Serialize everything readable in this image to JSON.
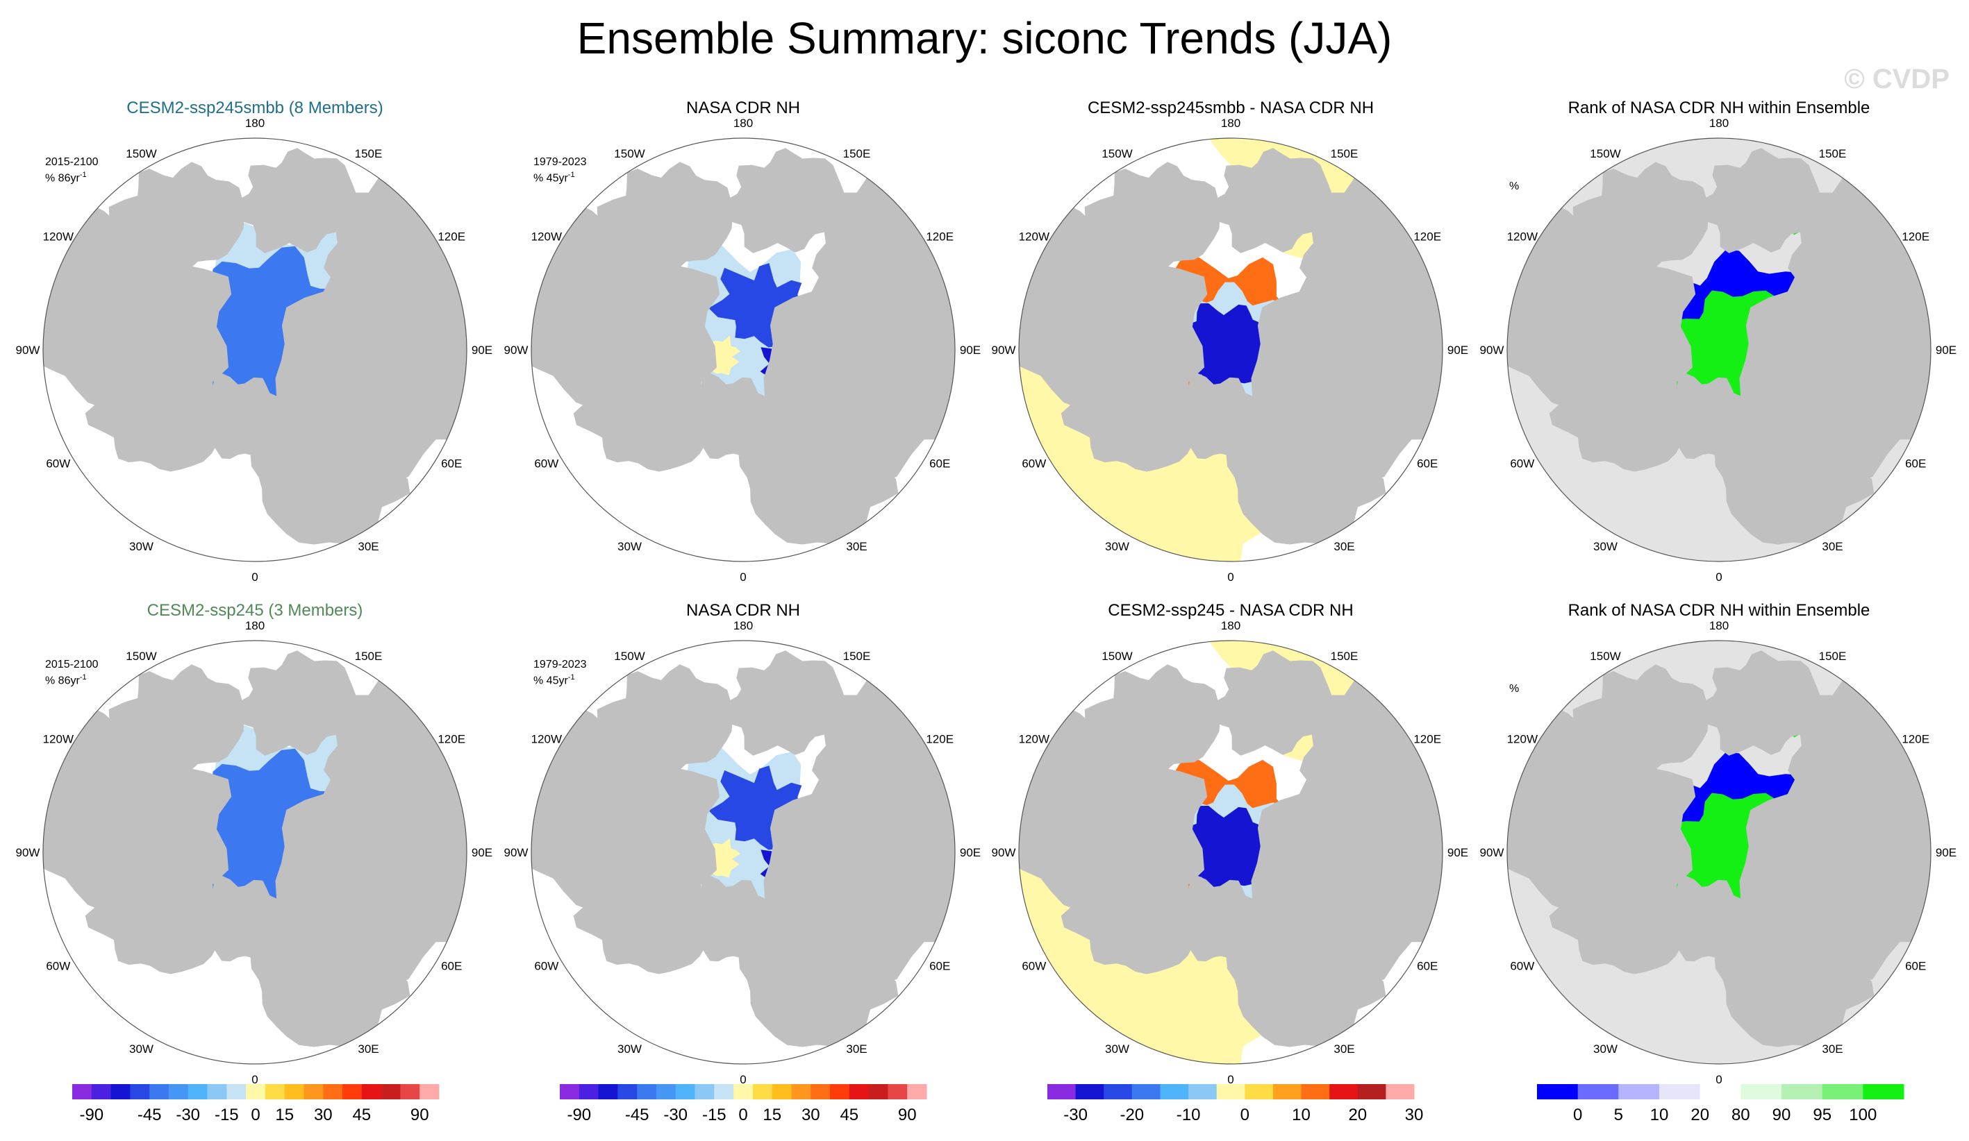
{
  "title": "Ensemble Summary: siconc Trends (JJA)",
  "watermark": "© CVDP",
  "colors": {
    "land": "#c0c0c0",
    "ocean": "#ffffff",
    "rank_background": "#e3e3e3"
  },
  "longitude_labels": [
    "180",
    "150E",
    "120E",
    "90E",
    "60E",
    "30E",
    "0",
    "30W",
    "60W",
    "90W",
    "120W",
    "150W"
  ],
  "panels": [
    {
      "row": 0,
      "col": 0,
      "title": "CESM2-ssp245smbb (8 Members)",
      "title_color": "#1f6f8b",
      "period": "2015-2100",
      "units": "% 86yr",
      "kind": "trend_model"
    },
    {
      "row": 0,
      "col": 1,
      "title": "NASA CDR NH",
      "title_color": "#000000",
      "period": "1979-2023",
      "units": "% 45yr",
      "kind": "trend_obs"
    },
    {
      "row": 0,
      "col": 2,
      "title": "CESM2-ssp245smbb - NASA CDR NH",
      "title_color": "#000000",
      "kind": "difference"
    },
    {
      "row": 0,
      "col": 3,
      "title": "Rank of NASA CDR NH within Ensemble",
      "title_color": "#000000",
      "units_only": "%",
      "kind": "rank"
    },
    {
      "row": 1,
      "col": 0,
      "title": "CESM2-ssp245 (3 Members)",
      "title_color": "#4f8a57",
      "period": "2015-2100",
      "units": "% 86yr",
      "kind": "trend_model"
    },
    {
      "row": 1,
      "col": 1,
      "title": "NASA CDR NH",
      "title_color": "#000000",
      "period": "1979-2023",
      "units": "% 45yr",
      "kind": "trend_obs"
    },
    {
      "row": 1,
      "col": 2,
      "title": "CESM2-ssp245 - NASA CDR NH",
      "title_color": "#000000",
      "kind": "difference"
    },
    {
      "row": 1,
      "col": 3,
      "title": "Rank of NASA CDR NH within Ensemble",
      "title_color": "#000000",
      "units_only": "%",
      "kind": "rank"
    }
  ],
  "colorbars": [
    {
      "name": "trend-colorbar-1",
      "colors": [
        "#8a2be2",
        "#4b20e0",
        "#1414d2",
        "#2848e6",
        "#3c78f0",
        "#4696f5",
        "#50b4fa",
        "#8cc8f5",
        "#c6e2f5",
        "#fff8a8",
        "#ffdc46",
        "#ffbe1e",
        "#ff961e",
        "#ff6e14",
        "#ff3c0a",
        "#e61414",
        "#c81e1e",
        "#e64646",
        "#ffaaaa"
      ],
      "ticks": [
        "-90",
        "-45",
        "-30",
        "-15",
        "0",
        "15",
        "30",
        "45",
        "90"
      ]
    },
    {
      "name": "trend-colorbar-2",
      "colors": [
        "#8a2be2",
        "#4b20e0",
        "#1414d2",
        "#2848e6",
        "#3c78f0",
        "#4696f5",
        "#50b4fa",
        "#8cc8f5",
        "#c6e2f5",
        "#fff8a8",
        "#ffdc46",
        "#ffbe1e",
        "#ff961e",
        "#ff6e14",
        "#ff3c0a",
        "#e61414",
        "#c81e1e",
        "#e64646",
        "#ffaaaa"
      ],
      "ticks": [
        "-90",
        "-45",
        "-30",
        "-15",
        "0",
        "15",
        "30",
        "45",
        "90"
      ]
    },
    {
      "name": "difference-colorbar",
      "colors": [
        "#8a2be2",
        "#1414d2",
        "#2848e6",
        "#3c78f0",
        "#50b4fa",
        "#8cc8f5",
        "#fff8a8",
        "#ffdc46",
        "#ffa01e",
        "#ff6e14",
        "#e61414",
        "#b41e1e",
        "#ffaaaa"
      ],
      "ticks": [
        "-30",
        "-20",
        "-10",
        "0",
        "10",
        "20",
        "30"
      ]
    },
    {
      "name": "rank-colorbar",
      "colors": [
        "#0000ff",
        "#6b6bff",
        "#b4b4ff",
        "#e6e6fa",
        "#ffffff",
        "#e0fae0",
        "#b4f0b4",
        "#78f078",
        "#14f014"
      ],
      "ticks": [
        "0",
        "5",
        "10",
        "20",
        "80",
        "90",
        "95",
        "100"
      ]
    }
  ]
}
